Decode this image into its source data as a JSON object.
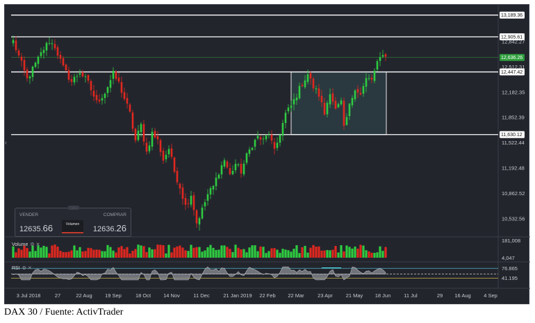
{
  "caption": "DAX 30 / Fuente: ActivTrader",
  "colors": {
    "up": "#2ecc40",
    "down": "#e0281f",
    "background": "#23252d",
    "level_line": "#ffffff",
    "current_tag": "#2e9e3c",
    "box_fill": "#314a4f",
    "rsi_fill": "#8c8e94",
    "rsi_overbought": "#4fd8e8"
  },
  "trade_widget": {
    "sell_label": "VENDER",
    "buy_label": "COMPRAR",
    "sell_price_main": "12635.",
    "sell_price_small": "66",
    "buy_price_main": "12636.",
    "buy_price_small": "26",
    "center_button": "Volumen",
    "handle": "-----"
  },
  "volume_pane": {
    "label": "Volume"
  },
  "rsi_pane": {
    "label": "RSI"
  },
  "chart_data": [
    {
      "type": "candlestick",
      "title": "",
      "price_axis_ticks": [
        "13,189.36",
        "12,905.61",
        "12,842.27",
        "12,636.26",
        "12,512.31",
        "12,447.42",
        "12,182.35",
        "11,852.39",
        "11,630.12",
        "11,522.44",
        "11,192.48",
        "10,862.52",
        "10,532.56"
      ],
      "price_tick_values": [
        13189.36,
        12905.61,
        12842.27,
        12636.26,
        12512.31,
        12447.42,
        12182.35,
        11852.39,
        11630.12,
        11522.44,
        11192.48,
        10862.52,
        10532.56
      ],
      "ylim": [
        10350,
        13250
      ],
      "x_tick_labels": [
        "3 Jul 2018",
        "27",
        "22 Aug",
        "19 Sep",
        "18 Oct",
        "14 Nov",
        "11 Dec",
        "21 Jan 2019",
        "22 Feb",
        "22 Mar",
        "23 Apr",
        "21 May",
        "18 Jun",
        "11 Jul",
        "29",
        "16 Aug",
        "4 Sep"
      ],
      "horizontal_levels": [
        13189.36,
        12905.61,
        12447.42,
        11630.12
      ],
      "current_price": 12636.26,
      "consolidation_box": {
        "start": "22 Mar",
        "end": "18 Jun",
        "top": 12447.42,
        "bottom": 11630.12
      },
      "price_path": [
        [
          0,
          12850
        ],
        [
          2,
          12650
        ],
        [
          5,
          12350
        ],
        [
          8,
          12550
        ],
        [
          11,
          12750
        ],
        [
          13,
          12850
        ],
        [
          15,
          12780
        ],
        [
          18,
          12500
        ],
        [
          21,
          12320
        ],
        [
          24,
          12450
        ],
        [
          27,
          12300
        ],
        [
          30,
          12050
        ],
        [
          33,
          12180
        ],
        [
          36,
          12420
        ],
        [
          38,
          12300
        ],
        [
          40,
          12100
        ],
        [
          42,
          11900
        ],
        [
          44,
          11550
        ],
        [
          46,
          11750
        ],
        [
          48,
          11400
        ],
        [
          50,
          11650
        ],
        [
          52,
          11550
        ],
        [
          54,
          11300
        ],
        [
          56,
          11450
        ],
        [
          58,
          11150
        ],
        [
          60,
          10950
        ],
        [
          62,
          10700
        ],
        [
          64,
          10850
        ],
        [
          66,
          10480
        ],
        [
          68,
          10650
        ],
        [
          70,
          10850
        ],
        [
          72,
          10950
        ],
        [
          74,
          11150
        ],
        [
          76,
          11300
        ],
        [
          78,
          11100
        ],
        [
          80,
          11250
        ],
        [
          82,
          11150
        ],
        [
          84,
          11350
        ],
        [
          86,
          11500
        ],
        [
          88,
          11600
        ],
        [
          90,
          11550
        ],
        [
          92,
          11650
        ],
        [
          94,
          11400
        ],
        [
          96,
          11650
        ],
        [
          98,
          11900
        ],
        [
          100,
          12000
        ],
        [
          102,
          12150
        ],
        [
          104,
          12300
        ],
        [
          106,
          12420
        ],
        [
          108,
          12250
        ],
        [
          110,
          12150
        ],
        [
          112,
          11900
        ],
        [
          114,
          12200
        ],
        [
          116,
          11950
        ],
        [
          118,
          12050
        ],
        [
          119,
          11700
        ],
        [
          121,
          12000
        ],
        [
          123,
          12250
        ],
        [
          125,
          12150
        ],
        [
          127,
          12350
        ],
        [
          129,
          12350
        ],
        [
          131,
          12550
        ],
        [
          133,
          12700
        ],
        [
          134,
          12640
        ]
      ]
    },
    {
      "type": "bar",
      "title": "Volume",
      "axis_ticks": [
        "181,008",
        "4,047"
      ],
      "ylim": [
        4047,
        181008
      ]
    },
    {
      "type": "line",
      "title": "RSI",
      "axis_ticks": [
        "76.865",
        "41.195"
      ],
      "levels": [
        76.865,
        41.195
      ]
    }
  ]
}
